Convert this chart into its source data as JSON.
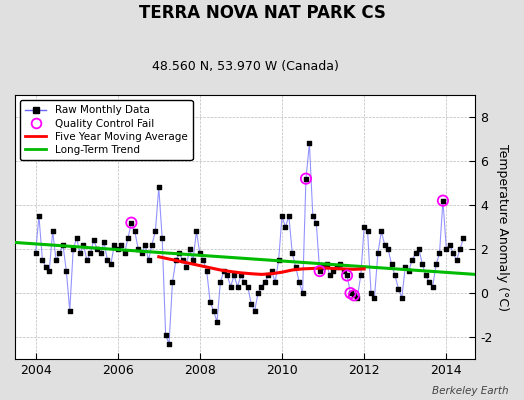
{
  "title": "TERRA NOVA NAT PARK CS",
  "subtitle": "48.560 N, 53.970 W (Canada)",
  "ylabel": "Temperature Anomaly (°C)",
  "watermark": "Berkeley Earth",
  "xlim": [
    2003.5,
    2014.7
  ],
  "ylim": [
    -3.0,
    9.0
  ],
  "yticks": [
    -2,
    0,
    2,
    4,
    6,
    8
  ],
  "xticks": [
    2004,
    2006,
    2008,
    2010,
    2012,
    2014
  ],
  "bg_color": "#e0e0e0",
  "plot_bg": "#ffffff",
  "raw_color": "#6666ff",
  "raw_alpha": 0.7,
  "ma_color": "#ff0000",
  "trend_color": "#00bb00",
  "qc_color": "#ff00ff",
  "raw_data": {
    "dates": [
      2004.0,
      2004.083,
      2004.167,
      2004.25,
      2004.333,
      2004.417,
      2004.5,
      2004.583,
      2004.667,
      2004.75,
      2004.833,
      2004.917,
      2005.0,
      2005.083,
      2005.167,
      2005.25,
      2005.333,
      2005.417,
      2005.5,
      2005.583,
      2005.667,
      2005.75,
      2005.833,
      2005.917,
      2006.0,
      2006.083,
      2006.167,
      2006.25,
      2006.333,
      2006.417,
      2006.5,
      2006.583,
      2006.667,
      2006.75,
      2006.833,
      2006.917,
      2007.0,
      2007.083,
      2007.167,
      2007.25,
      2007.333,
      2007.417,
      2007.5,
      2007.583,
      2007.667,
      2007.75,
      2007.833,
      2007.917,
      2008.0,
      2008.083,
      2008.167,
      2008.25,
      2008.333,
      2008.417,
      2008.5,
      2008.583,
      2008.667,
      2008.75,
      2008.833,
      2008.917,
      2009.0,
      2009.083,
      2009.167,
      2009.25,
      2009.333,
      2009.417,
      2009.5,
      2009.583,
      2009.667,
      2009.75,
      2009.833,
      2009.917,
      2010.0,
      2010.083,
      2010.167,
      2010.25,
      2010.333,
      2010.417,
      2010.5,
      2010.583,
      2010.667,
      2010.75,
      2010.833,
      2010.917,
      2011.0,
      2011.083,
      2011.167,
      2011.25,
      2011.333,
      2011.417,
      2011.5,
      2011.583,
      2011.667,
      2011.75,
      2011.833,
      2011.917,
      2012.0,
      2012.083,
      2012.167,
      2012.25,
      2012.333,
      2012.417,
      2012.5,
      2012.583,
      2012.667,
      2012.75,
      2012.833,
      2012.917,
      2013.0,
      2013.083,
      2013.167,
      2013.25,
      2013.333,
      2013.417,
      2013.5,
      2013.583,
      2013.667,
      2013.75,
      2013.833,
      2013.917,
      2014.0,
      2014.083,
      2014.167,
      2014.25,
      2014.333,
      2014.417
    ],
    "values": [
      1.8,
      3.5,
      1.5,
      1.2,
      1.0,
      2.8,
      1.5,
      1.8,
      2.2,
      1.0,
      -0.8,
      2.0,
      2.5,
      1.8,
      2.2,
      1.5,
      1.8,
      2.4,
      2.0,
      1.8,
      2.3,
      1.5,
      1.3,
      2.2,
      2.0,
      2.2,
      1.8,
      2.5,
      3.2,
      2.8,
      2.0,
      1.8,
      2.2,
      1.5,
      2.2,
      2.8,
      4.8,
      2.5,
      -1.9,
      -2.3,
      0.5,
      1.5,
      1.8,
      1.5,
      1.2,
      2.0,
      1.5,
      2.8,
      1.8,
      1.5,
      1.0,
      -0.4,
      -0.8,
      -1.3,
      0.5,
      1.0,
      0.8,
      0.3,
      0.8,
      0.3,
      0.8,
      0.5,
      0.3,
      -0.5,
      -0.8,
      0.0,
      0.3,
      0.5,
      0.8,
      1.0,
      0.5,
      1.5,
      3.5,
      3.0,
      3.5,
      1.8,
      1.2,
      0.5,
      0.0,
      5.2,
      6.8,
      3.5,
      3.2,
      1.0,
      1.2,
      1.3,
      0.8,
      1.0,
      1.2,
      1.3,
      1.0,
      0.8,
      0.0,
      -0.1,
      -0.2,
      0.8,
      3.0,
      2.8,
      0.0,
      -0.2,
      1.8,
      2.8,
      2.2,
      2.0,
      1.3,
      0.8,
      0.2,
      -0.2,
      1.2,
      1.0,
      1.5,
      1.8,
      2.0,
      1.3,
      0.8,
      0.5,
      0.3,
      1.3,
      1.8,
      4.2,
      2.0,
      2.2,
      1.8,
      1.5,
      2.0,
      2.5
    ]
  },
  "qc_fail_points": {
    "dates": [
      2006.333,
      2010.583,
      2010.917,
      2011.583,
      2011.667,
      2011.75,
      2013.917
    ],
    "values": [
      3.2,
      5.2,
      1.0,
      0.8,
      0.0,
      -0.1,
      4.2
    ]
  },
  "moving_avg": {
    "dates": [
      2007.0,
      2007.25,
      2007.5,
      2007.75,
      2008.0,
      2008.25,
      2008.5,
      2008.75,
      2009.0,
      2009.25,
      2009.5,
      2009.75,
      2010.0,
      2010.25,
      2010.5,
      2010.75,
      2011.0,
      2011.25,
      2011.5,
      2011.75,
      2012.0
    ],
    "values": [
      1.65,
      1.55,
      1.45,
      1.35,
      1.25,
      1.15,
      1.05,
      0.98,
      0.92,
      0.88,
      0.85,
      0.88,
      0.95,
      1.05,
      1.1,
      1.12,
      1.15,
      1.12,
      1.1,
      1.08,
      1.1
    ]
  },
  "trend": {
    "dates": [
      2003.5,
      2014.7
    ],
    "values": [
      2.3,
      0.85
    ]
  },
  "legend_labels": [
    "Raw Monthly Data",
    "Quality Control Fail",
    "Five Year Moving Average",
    "Long-Term Trend"
  ],
  "title_fontsize": 12,
  "subtitle_fontsize": 9,
  "tick_fontsize": 9,
  "ylabel_fontsize": 9
}
